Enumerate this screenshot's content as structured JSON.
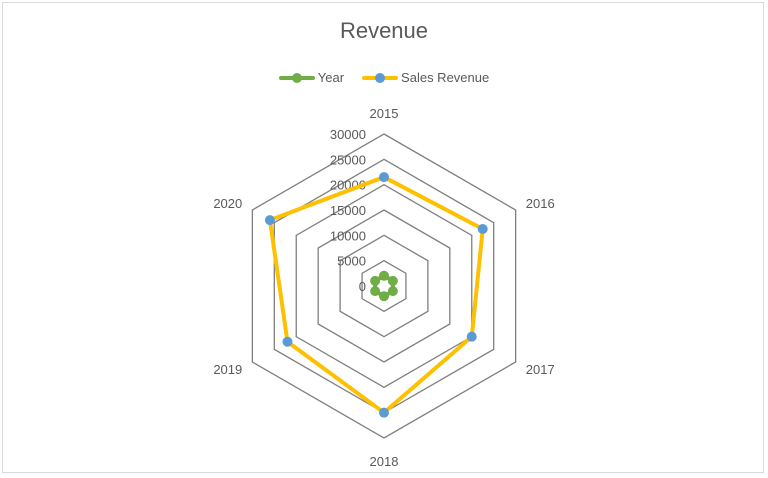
{
  "chart_data": {
    "type": "radar",
    "title": "Revenue",
    "categories": [
      "2015",
      "2016",
      "2017",
      "2018",
      "2019",
      "2020"
    ],
    "series": [
      {
        "name": "Year",
        "values": [
          2015,
          2016,
          2017,
          2018,
          2019,
          2020
        ],
        "line_color": "#70AD47",
        "marker_color": "#70AD47"
      },
      {
        "name": "Sales Revenue",
        "values": [
          21500,
          22500,
          20000,
          25000,
          22000,
          26000
        ],
        "line_color": "#FFC000",
        "marker_color": "#5B9BD5"
      }
    ],
    "radial_axis": {
      "min": 0,
      "max": 30000,
      "step": 5000,
      "tick_labels": [
        "0",
        "5000",
        "10000",
        "15000",
        "20000",
        "25000",
        "30000"
      ]
    },
    "grid": true,
    "legend_position": "top"
  },
  "colors": {
    "grid": "#7F7F7F",
    "text": "#595959",
    "border": "#D9D9D9"
  }
}
